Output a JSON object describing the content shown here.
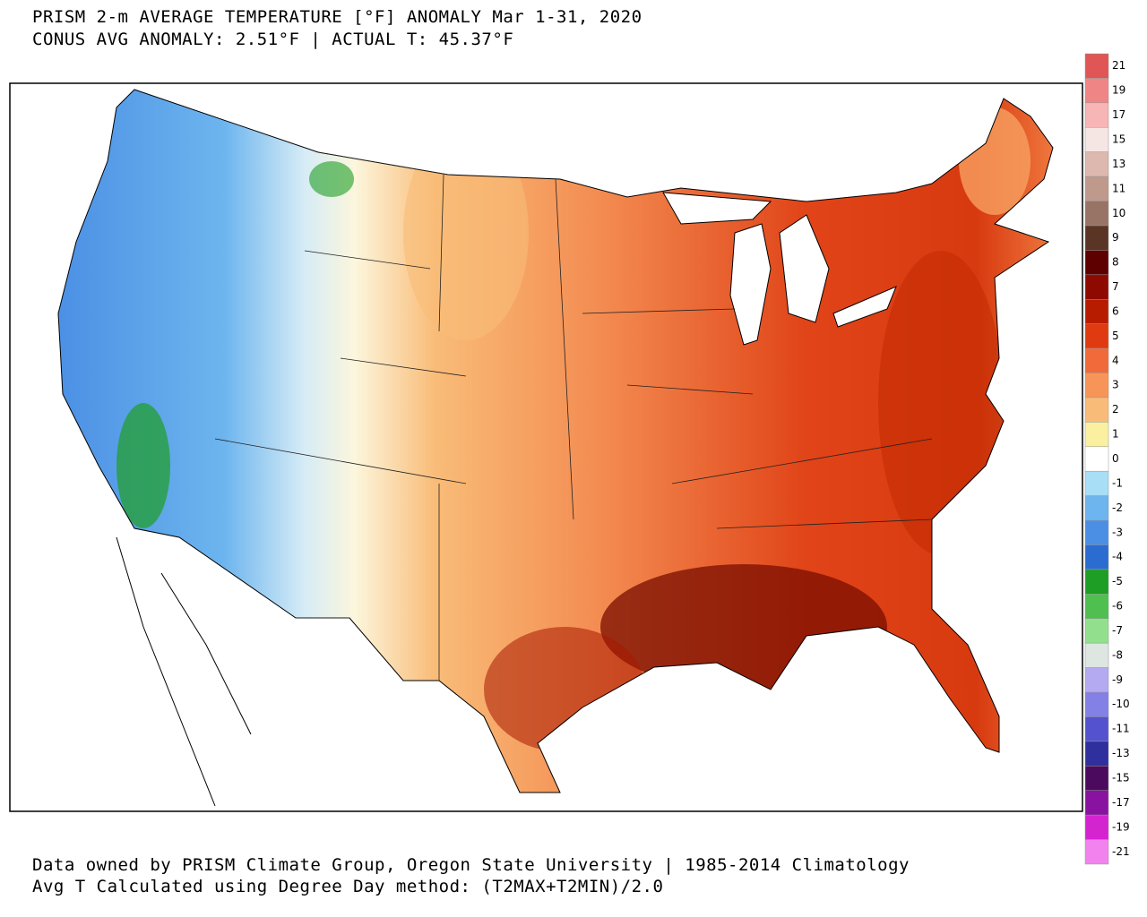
{
  "header": {
    "title": "PRISM 2-m AVERAGE TEMPERATURE [°F] ANOMALY Mar 1-31, 2020",
    "subtitle": "CONUS AVG ANOMALY: 2.51°F | ACTUAL T: 45.37°F"
  },
  "footer": {
    "line1": "Data owned by PRISM Climate Group, Oregon State University | 1985-2014 Climatology",
    "line2": "Avg T Calculated using Degree Day method: (T2MAX+T2MIN)/2.0"
  },
  "legend": {
    "entries": [
      {
        "label": 21,
        "color": "#e05555"
      },
      {
        "label": 19,
        "color": "#f08585"
      },
      {
        "label": 17,
        "color": "#f8b5b5"
      },
      {
        "label": 15,
        "color": "#f5e6e3"
      },
      {
        "label": 13,
        "color": "#dcb8ae"
      },
      {
        "label": 11,
        "color": "#bf9a8c"
      },
      {
        "label": 10,
        "color": "#977466"
      },
      {
        "label": 9,
        "color": "#5a3525"
      },
      {
        "label": 8,
        "color": "#5e0000"
      },
      {
        "label": 7,
        "color": "#8e0a00"
      },
      {
        "label": 6,
        "color": "#b81c00"
      },
      {
        "label": 5,
        "color": "#e03a10"
      },
      {
        "label": 4,
        "color": "#f06a3a"
      },
      {
        "label": 3,
        "color": "#f79558"
      },
      {
        "label": 2,
        "color": "#f9bc78"
      },
      {
        "label": 1,
        "color": "#fbf0a0"
      },
      {
        "label": 0,
        "color": "#ffffff"
      },
      {
        "label": -1,
        "color": "#a8def6"
      },
      {
        "label": -2,
        "color": "#6db5ee"
      },
      {
        "label": -3,
        "color": "#4a8fe4"
      },
      {
        "label": -4,
        "color": "#2a6cd0"
      },
      {
        "label": -5,
        "color": "#1e9e24"
      },
      {
        "label": -6,
        "color": "#4fc04f"
      },
      {
        "label": -7,
        "color": "#92e08e"
      },
      {
        "label": -8,
        "color": "#dde6e0"
      },
      {
        "label": -9,
        "color": "#b4aaf2"
      },
      {
        "label": -10,
        "color": "#8380e6"
      },
      {
        "label": -11,
        "color": "#5452cf"
      },
      {
        "label": -13,
        "color": "#2f2f9e"
      },
      {
        "label": -15,
        "color": "#4c0a5e"
      },
      {
        "label": -17,
        "color": "#8a12a0"
      },
      {
        "label": -19,
        "color": "#d424d0"
      },
      {
        "label": -21,
        "color": "#f282ee"
      }
    ]
  }
}
